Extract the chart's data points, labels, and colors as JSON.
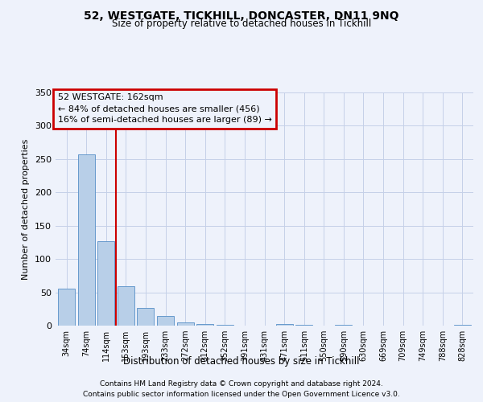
{
  "title": "52, WESTGATE, TICKHILL, DONCASTER, DN11 9NQ",
  "subtitle": "Size of property relative to detached houses in Tickhill",
  "xlabel": "Distribution of detached houses by size in Tickhill",
  "ylabel": "Number of detached properties",
  "bar_labels": [
    "34sqm",
    "74sqm",
    "114sqm",
    "153sqm",
    "193sqm",
    "233sqm",
    "272sqm",
    "312sqm",
    "352sqm",
    "391sqm",
    "431sqm",
    "471sqm",
    "511sqm",
    "550sqm",
    "590sqm",
    "630sqm",
    "669sqm",
    "709sqm",
    "749sqm",
    "788sqm",
    "828sqm"
  ],
  "bar_values": [
    55,
    257,
    127,
    59,
    27,
    14,
    5,
    2,
    1,
    0,
    0,
    2,
    1,
    0,
    1,
    0,
    0,
    0,
    0,
    0,
    1
  ],
  "bar_color": "#b8cfe8",
  "bar_edge_color": "#6699cc",
  "vline_color": "#cc0000",
  "vline_bar_index": 3,
  "annotation_title": "52 WESTGATE: 162sqm",
  "annotation_line1": "← 84% of detached houses are smaller (456)",
  "annotation_line2": "16% of semi-detached houses are larger (89) →",
  "annotation_box_color": "#cc0000",
  "ylim": [
    0,
    350
  ],
  "yticks": [
    0,
    50,
    100,
    150,
    200,
    250,
    300,
    350
  ],
  "footer_line1": "Contains HM Land Registry data © Crown copyright and database right 2024.",
  "footer_line2": "Contains public sector information licensed under the Open Government Licence v3.0.",
  "bg_color": "#eef2fb",
  "grid_color": "#c5d0e8"
}
